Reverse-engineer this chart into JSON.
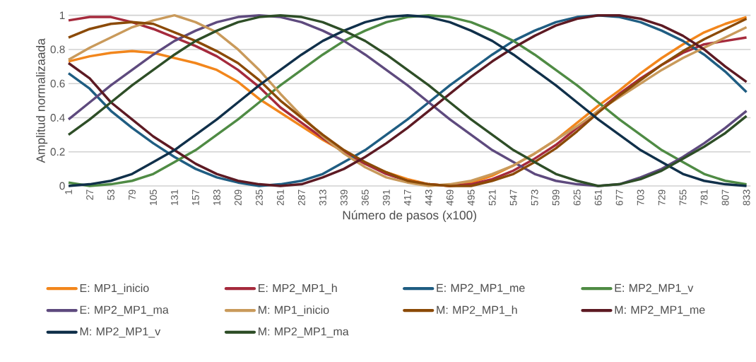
{
  "chart_data": {
    "type": "line",
    "xlabel": "Número de pasos (x100)",
    "ylabel": "Amplitud normalizaada",
    "x": [
      1,
      27,
      53,
      79,
      105,
      131,
      157,
      183,
      209,
      235,
      261,
      287,
      313,
      339,
      365,
      391,
      417,
      443,
      469,
      495,
      521,
      547,
      573,
      599,
      625,
      651,
      677,
      703,
      729,
      755,
      781,
      807,
      833
    ],
    "xlim": [
      1,
      838
    ],
    "xticks": [
      1,
      27,
      53,
      79,
      105,
      131,
      157,
      183,
      209,
      235,
      261,
      287,
      313,
      339,
      365,
      391,
      417,
      443,
      469,
      495,
      521,
      547,
      573,
      599,
      625,
      651,
      677,
      703,
      729,
      755,
      781,
      807,
      833
    ],
    "ylim": [
      0,
      1
    ],
    "yticks": [
      0,
      0.2,
      0.4,
      0.6,
      0.8,
      1
    ],
    "grid": "y",
    "legend": "bottom",
    "marker": "none",
    "line_style": "solid",
    "series": [
      {
        "name": "E: MP1_inicio",
        "color": "#f2861c",
        "values": [
          0.73,
          0.76,
          0.78,
          0.79,
          0.78,
          0.75,
          0.72,
          0.68,
          0.61,
          0.51,
          0.43,
          0.35,
          0.27,
          0.2,
          0.13,
          0.08,
          0.04,
          0.01,
          0,
          0.02,
          0.06,
          0.12,
          0.19,
          0.27,
          0.37,
          0.47,
          0.56,
          0.66,
          0.75,
          0.83,
          0.9,
          0.95,
          0.99
        ]
      },
      {
        "name": "E: MP2_MP1_h",
        "color": "#a52a3c",
        "values": [
          0.97,
          0.99,
          0.99,
          0.96,
          0.92,
          0.87,
          0.82,
          0.76,
          0.68,
          0.58,
          0.46,
          0.37,
          0.28,
          0.2,
          0.13,
          0.07,
          0.03,
          0.01,
          0,
          0.01,
          0.04,
          0.09,
          0.16,
          0.24,
          0.34,
          0.44,
          0.54,
          0.63,
          0.71,
          0.78,
          0.83,
          0.85,
          0.87
        ]
      },
      {
        "name": "E: MP2_MP1_me",
        "color": "#1f5d82",
        "values": [
          0.66,
          0.57,
          0.44,
          0.34,
          0.25,
          0.17,
          0.1,
          0.05,
          0.02,
          0,
          0.01,
          0.03,
          0.07,
          0.14,
          0.21,
          0.3,
          0.39,
          0.49,
          0.59,
          0.68,
          0.77,
          0.85,
          0.91,
          0.96,
          0.99,
          1,
          0.99,
          0.96,
          0.91,
          0.85,
          0.77,
          0.67,
          0.55
        ]
      },
      {
        "name": "E: MP2_MP1_v",
        "color": "#4f8b44",
        "values": [
          0.02,
          0,
          0.01,
          0.03,
          0.07,
          0.14,
          0.21,
          0.3,
          0.39,
          0.49,
          0.59,
          0.68,
          0.77,
          0.85,
          0.91,
          0.96,
          0.99,
          1,
          0.99,
          0.96,
          0.91,
          0.85,
          0.77,
          0.68,
          0.59,
          0.49,
          0.39,
          0.3,
          0.21,
          0.14,
          0.07,
          0.03,
          0.01
        ]
      },
      {
        "name": "E: MP2_MP1_ma",
        "color": "#5e4a7e",
        "values": [
          0.39,
          0.49,
          0.59,
          0.68,
          0.77,
          0.85,
          0.91,
          0.96,
          0.99,
          1,
          0.99,
          0.96,
          0.91,
          0.85,
          0.77,
          0.68,
          0.59,
          0.49,
          0.39,
          0.3,
          0.21,
          0.14,
          0.07,
          0.03,
          0.01,
          0,
          0.01,
          0.05,
          0.1,
          0.17,
          0.25,
          0.34,
          0.44
        ]
      },
      {
        "name": "M: MP1_inicio",
        "color": "#c99a5b",
        "values": [
          0.74,
          0.81,
          0.87,
          0.93,
          0.97,
          1,
          0.96,
          0.9,
          0.8,
          0.68,
          0.54,
          0.41,
          0.29,
          0.19,
          0.11,
          0.05,
          0.02,
          0,
          0.01,
          0.03,
          0.07,
          0.12,
          0.19,
          0.27,
          0.35,
          0.44,
          0.52,
          0.6,
          0.68,
          0.75,
          0.81,
          0.87,
          0.93
        ]
      },
      {
        "name": "M: MP2_MP1_h",
        "color": "#8b4a07",
        "values": [
          0.87,
          0.92,
          0.95,
          0.96,
          0.95,
          0.9,
          0.85,
          0.79,
          0.72,
          0.62,
          0.5,
          0.4,
          0.3,
          0.21,
          0.14,
          0.08,
          0.03,
          0.01,
          0,
          0,
          0.03,
          0.07,
          0.14,
          0.22,
          0.32,
          0.43,
          0.53,
          0.62,
          0.71,
          0.79,
          0.86,
          0.92,
          0.98
        ]
      },
      {
        "name": "M: MP2_MP1_me",
        "color": "#5d1a23",
        "values": [
          0.72,
          0.63,
          0.49,
          0.39,
          0.29,
          0.21,
          0.13,
          0.07,
          0.03,
          0.01,
          0,
          0.01,
          0.05,
          0.1,
          0.17,
          0.25,
          0.34,
          0.44,
          0.54,
          0.64,
          0.73,
          0.81,
          0.88,
          0.94,
          0.98,
          1,
          1,
          0.98,
          0.94,
          0.88,
          0.8,
          0.7,
          0.61
        ]
      },
      {
        "name": "M: MP2_MP1_v",
        "color": "#10304a",
        "values": [
          0,
          0.01,
          0.03,
          0.07,
          0.14,
          0.21,
          0.3,
          0.39,
          0.49,
          0.59,
          0.68,
          0.77,
          0.85,
          0.91,
          0.96,
          0.99,
          1,
          0.99,
          0.96,
          0.91,
          0.85,
          0.77,
          0.68,
          0.59,
          0.49,
          0.39,
          0.3,
          0.21,
          0.14,
          0.07,
          0.03,
          0.01,
          0
        ]
      },
      {
        "name": "M: MP2_MP1_ma",
        "color": "#2e4e27",
        "values": [
          0.3,
          0.39,
          0.49,
          0.59,
          0.68,
          0.77,
          0.85,
          0.91,
          0.96,
          0.99,
          1,
          0.99,
          0.96,
          0.91,
          0.85,
          0.77,
          0.68,
          0.59,
          0.49,
          0.39,
          0.3,
          0.21,
          0.14,
          0.07,
          0.03,
          0,
          0.01,
          0.04,
          0.09,
          0.16,
          0.23,
          0.31,
          0.41
        ]
      }
    ]
  }
}
